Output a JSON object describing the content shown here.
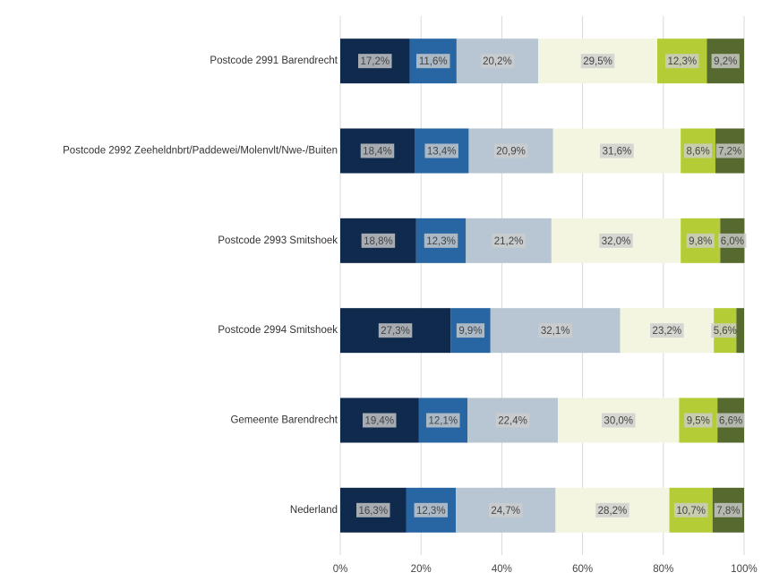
{
  "chart_data": {
    "type": "stacked-bar-horizontal",
    "categories": [
      "Postcode 2991 Barendrecht",
      "Postcode 2992 Zeeheldnbrt/Paddewei/Molenvlt/Nwe-/Buiten",
      "Postcode 2993 Smitshoek",
      "Postcode 2994 Smitshoek",
      "Gemeente Barendrecht",
      "Nederland"
    ],
    "series": [
      {
        "color": "#0f2a4d",
        "values": [
          17.2,
          18.4,
          18.8,
          27.3,
          19.4,
          16.3
        ],
        "value_labels": [
          "17,2%",
          "18,4%",
          "18,8%",
          "27,3%",
          "19,4%",
          "16,3%"
        ]
      },
      {
        "color": "#2766a3",
        "values": [
          11.6,
          13.4,
          12.3,
          9.9,
          12.1,
          12.3
        ],
        "value_labels": [
          "11,6%",
          "13,4%",
          "12,3%",
          "9,9%",
          "12,1%",
          "12,3%"
        ]
      },
      {
        "color": "#b7c6d2",
        "values": [
          20.2,
          20.9,
          21.2,
          32.1,
          22.4,
          24.7
        ],
        "value_labels": [
          "20,2%",
          "20,9%",
          "21,2%",
          "32,1%",
          "22,4%",
          "24,7%"
        ]
      },
      {
        "color": "#f3f5e1",
        "values": [
          29.5,
          31.6,
          32.0,
          23.2,
          30.0,
          28.2
        ],
        "value_labels": [
          "29,5%",
          "31,6%",
          "32,0%",
          "23,2%",
          "30,0%",
          "28,2%"
        ]
      },
      {
        "color": "#b4cd37",
        "values": [
          12.3,
          8.6,
          9.8,
          5.6,
          9.5,
          10.7
        ],
        "value_labels": [
          "12,3%",
          "8,6%",
          "9,8%",
          "5,6%",
          "9,5%",
          "10,7%"
        ]
      },
      {
        "color": "#566a30",
        "values": [
          9.2,
          7.2,
          6.0,
          1.9,
          6.6,
          7.8
        ],
        "value_labels": [
          "9,2%",
          "7,2%",
          "6,0%",
          null,
          "6,6%",
          "7,8%"
        ]
      }
    ],
    "xlim": [
      0,
      100
    ],
    "xticks": [
      {
        "value": 0,
        "label": "0%"
      },
      {
        "value": 20,
        "label": "20%"
      },
      {
        "value": 40,
        "label": "40%"
      },
      {
        "value": 60,
        "label": "60%"
      },
      {
        "value": 80,
        "label": "80%"
      },
      {
        "value": 100,
        "label": "100%"
      }
    ],
    "grid": true
  }
}
